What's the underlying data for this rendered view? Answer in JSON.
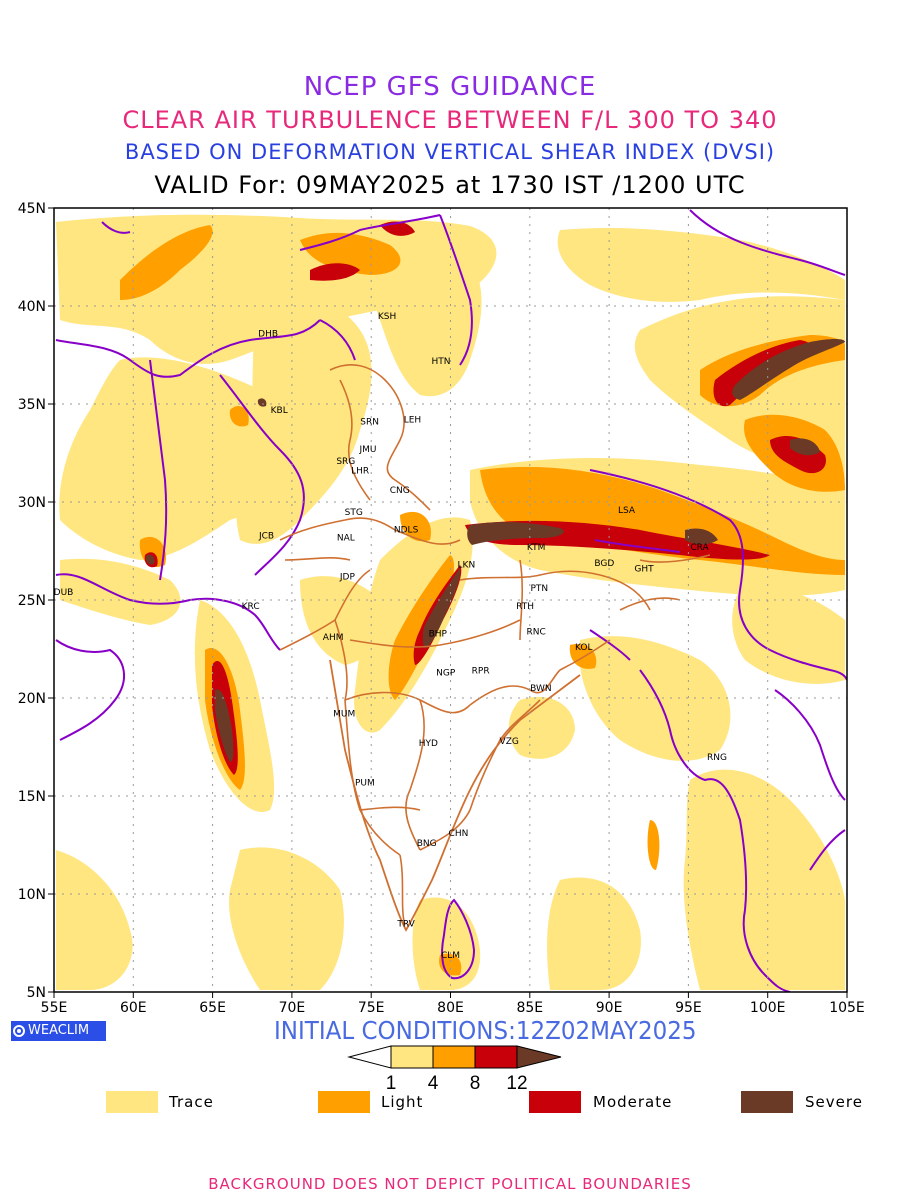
{
  "header": {
    "line1": "NCEP GFS GUIDANCE",
    "line2": "CLEAR AIR TURBULENCE BETWEEN F/L 300 TO 340",
    "line3": "BASED ON DEFORMATION VERTICAL SHEAR INDEX (DVSI)",
    "line4": "VALID For: 09MAY2025 at 1730 IST /1200 UTC"
  },
  "axes": {
    "lon_ticks": [
      "55E",
      "60E",
      "65E",
      "70E",
      "75E",
      "80E",
      "85E",
      "90E",
      "95E",
      "100E",
      "105E"
    ],
    "lat_ticks": [
      "45N",
      "40N",
      "35N",
      "30N",
      "25N",
      "20N",
      "15N",
      "10N",
      "5N"
    ],
    "lon_range": [
      55,
      105
    ],
    "lat_range": [
      5,
      45
    ]
  },
  "stations": [
    {
      "code": "KSH",
      "lon": 76.0,
      "lat": 39.5
    },
    {
      "code": "DHB",
      "lon": 68.5,
      "lat": 38.6
    },
    {
      "code": "HTN",
      "lon": 79.4,
      "lat": 37.2
    },
    {
      "code": "KBL",
      "lon": 69.2,
      "lat": 34.7
    },
    {
      "code": "SRN",
      "lon": 74.9,
      "lat": 34.1
    },
    {
      "code": "LEH",
      "lon": 77.6,
      "lat": 34.2
    },
    {
      "code": "JMU",
      "lon": 74.8,
      "lat": 32.7
    },
    {
      "code": "SRG",
      "lon": 73.4,
      "lat": 32.1
    },
    {
      "code": "LHR",
      "lon": 74.3,
      "lat": 31.6
    },
    {
      "code": "CNG",
      "lon": 76.8,
      "lat": 30.6
    },
    {
      "code": "STG",
      "lon": 73.9,
      "lat": 29.5
    },
    {
      "code": "NDLS",
      "lon": 77.2,
      "lat": 28.6
    },
    {
      "code": "JCB",
      "lon": 68.4,
      "lat": 28.3
    },
    {
      "code": "NAL",
      "lon": 73.4,
      "lat": 28.2
    },
    {
      "code": "LSA",
      "lon": 91.1,
      "lat": 29.6
    },
    {
      "code": "KTM",
      "lon": 85.4,
      "lat": 27.7
    },
    {
      "code": "CRA",
      "lon": 95.7,
      "lat": 27.7
    },
    {
      "code": "BGD",
      "lon": 89.7,
      "lat": 26.9
    },
    {
      "code": "GHT",
      "lon": 92.2,
      "lat": 26.6
    },
    {
      "code": "LKN",
      "lon": 81.0,
      "lat": 26.8
    },
    {
      "code": "JDP",
      "lon": 73.5,
      "lat": 26.2
    },
    {
      "code": "PTN",
      "lon": 85.6,
      "lat": 25.6
    },
    {
      "code": "DUB",
      "lon": 55.6,
      "lat": 25.4
    },
    {
      "code": "RTH",
      "lon": 84.7,
      "lat": 24.7
    },
    {
      "code": "KRC",
      "lon": 67.4,
      "lat": 24.7
    },
    {
      "code": "BHP",
      "lon": 79.2,
      "lat": 23.3
    },
    {
      "code": "RNC",
      "lon": 85.4,
      "lat": 23.4
    },
    {
      "code": "AHM",
      "lon": 72.6,
      "lat": 23.1
    },
    {
      "code": "KOL",
      "lon": 88.4,
      "lat": 22.6
    },
    {
      "code": "NGP",
      "lon": 79.7,
      "lat": 21.3
    },
    {
      "code": "RPR",
      "lon": 81.9,
      "lat": 21.4
    },
    {
      "code": "BWN",
      "lon": 85.7,
      "lat": 20.5
    },
    {
      "code": "MUM",
      "lon": 73.3,
      "lat": 19.2
    },
    {
      "code": "HYD",
      "lon": 78.6,
      "lat": 17.7
    },
    {
      "code": "VZG",
      "lon": 83.7,
      "lat": 17.8
    },
    {
      "code": "RNG",
      "lon": 96.8,
      "lat": 17.0
    },
    {
      "code": "PUM",
      "lon": 74.6,
      "lat": 15.7
    },
    {
      "code": "CHN",
      "lon": 80.5,
      "lat": 13.1
    },
    {
      "code": "BNG",
      "lon": 78.5,
      "lat": 12.6
    },
    {
      "code": "TRV",
      "lon": 77.2,
      "lat": 8.5
    },
    {
      "code": "CLM",
      "lon": 80.0,
      "lat": 6.9
    }
  ],
  "branding": {
    "logo_text": "WEACLIM"
  },
  "initial_conditions": "INITIAL CONDITIONS:12Z02MAY2025",
  "colorbar": {
    "ticks": [
      "1",
      "4",
      "8",
      "12"
    ],
    "colors": [
      "#ffffff",
      "#ffe680",
      "#ffa000",
      "#c8000a",
      "#6b3a26"
    ]
  },
  "legend": [
    {
      "label": "Trace",
      "color": "#ffe680"
    },
    {
      "label": "Light",
      "color": "#ffa000"
    },
    {
      "label": "Moderate",
      "color": "#c8000a"
    },
    {
      "label": "Severe",
      "color": "#6b3a26"
    }
  ],
  "footer": "BACKGROUND DOES NOT DEPICT POLITICAL BOUNDARIES"
}
